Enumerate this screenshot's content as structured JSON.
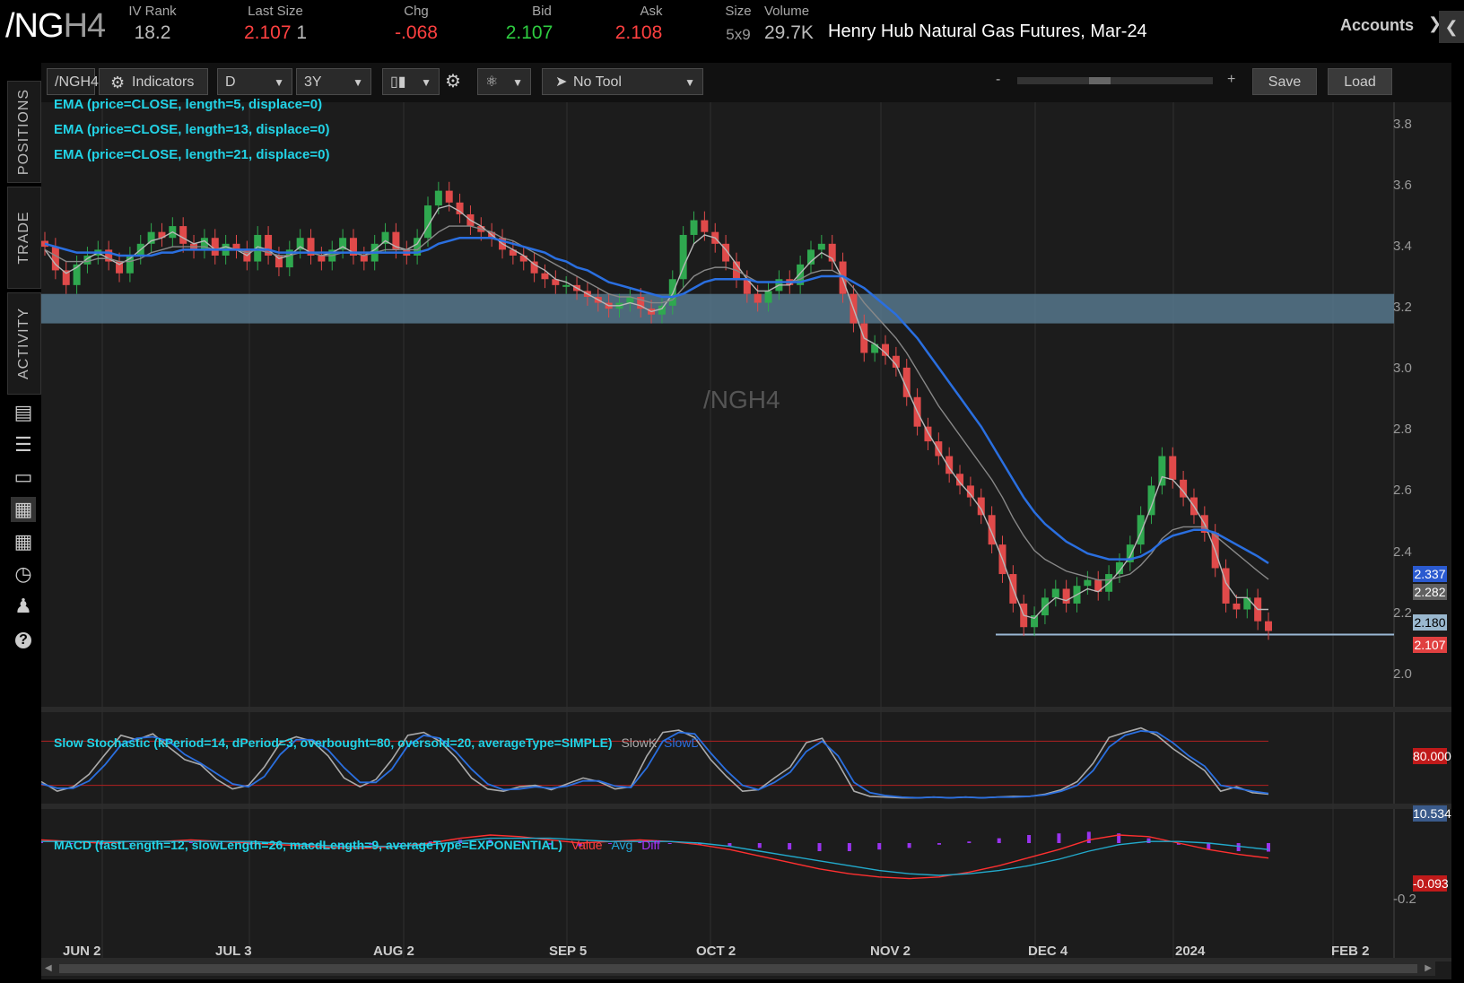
{
  "header": {
    "symbol_main": "/NG",
    "symbol_dim": "H4",
    "iv_rank_label": "IV Rank",
    "iv_rank_value": "18.2",
    "last_size_label": "Last Size",
    "last_value": "2.107",
    "last_size_value": "1",
    "chg_label": "Chg",
    "chg_value": "-.068",
    "bid_label": "Bid",
    "bid_value": "2.107",
    "ask_label": "Ask",
    "ask_value": "2.108",
    "size_label": "Size",
    "size_value": "5x9",
    "volume_label": "Volume",
    "volume_value": "29.7K",
    "description": "Henry Hub Natural Gas Futures, Mar-24",
    "accounts_label": "Accounts"
  },
  "left_nav": {
    "tabs": [
      "POSITIONS",
      "TRADE",
      "ACTIVITY"
    ],
    "icons": [
      "chart-panel-icon",
      "list-icon",
      "tv-icon",
      "chart-grid-icon",
      "grid-icon",
      "gauge-icon",
      "people-icon",
      "help-icon"
    ]
  },
  "toolbar": {
    "symbol_input": "/NGH4",
    "indicators_label": "Indicators",
    "aggregation": "D",
    "time_frame": "3Y",
    "tool": "No Tool",
    "save_label": "Save",
    "load_label": "Load",
    "zoom_minus": "-",
    "zoom_plus": "+"
  },
  "studies": {
    "ema1": "EMA (price=CLOSE, length=5, displace=0)",
    "ema2": "EMA (price=CLOSE, length=13, displace=0)",
    "ema3": "EMA (price=CLOSE, length=21, displace=0)",
    "stoch_title": "Slow Stochastic (kPeriod=14, dPeriod=3, overbought=80, oversold=20, averageType=SIMPLE)",
    "stoch_k": "SlowK",
    "stoch_d": "SlowD",
    "macd_title": "MACD (fastLength=12, slowLength=26, macdLength=9, averageType=EXPONENTIAL)",
    "macd_value": "Value",
    "macd_avg": "Avg",
    "macd_diff": "Diff"
  },
  "watermark": "/NGH4",
  "chart_data": {
    "type": "line",
    "title": "/NGH4",
    "price_axis": [
      "3.8",
      "3.6",
      "3.4",
      "3.2",
      "3.0",
      "2.8",
      "2.6",
      "2.4",
      "2.2",
      "2.0"
    ],
    "ylim": [
      1.85,
      3.9
    ],
    "date_axis": [
      "JUN 2",
      "JUL 3",
      "AUG 2",
      "SEP 5",
      "OCT 2",
      "NOV 2",
      "DEC 4",
      "2024",
      "FEB 2"
    ],
    "price_labels": {
      "ema21": "2.337",
      "ema13": "2.282",
      "ema5": "2.180",
      "last": "2.107"
    },
    "stoch_labels": {
      "overbought": "80.000",
      "current": "10.534"
    },
    "macd_labels": {
      "tick": "-0.2",
      "value": "-0.093"
    },
    "support_zone": [
      3.15,
      3.25
    ],
    "support_line": 2.095,
    "series": [
      {
        "name": "/NGH4",
        "color": "#e04a4a",
        "values": [
          3.41,
          3.33,
          3.28,
          3.35,
          3.38,
          3.4,
          3.36,
          3.32,
          3.38,
          3.42,
          3.46,
          3.44,
          3.48,
          3.42,
          3.4,
          3.44,
          3.38,
          3.42,
          3.4,
          3.36,
          3.45,
          3.38,
          3.34,
          3.4,
          3.44,
          3.38,
          3.36,
          3.4,
          3.44,
          3.38,
          3.36,
          3.42,
          3.46,
          3.4,
          3.38,
          3.44,
          3.55,
          3.6,
          3.56,
          3.52,
          3.48,
          3.46,
          3.44,
          3.4,
          3.38,
          3.36,
          3.32,
          3.3,
          3.28,
          3.28,
          3.26,
          3.24,
          3.22,
          3.2,
          3.22,
          3.24,
          3.2,
          3.18,
          3.21,
          3.3,
          3.45,
          3.5,
          3.46,
          3.42,
          3.36,
          3.3,
          3.25,
          3.22,
          3.26,
          3.3,
          3.28,
          3.35,
          3.4,
          3.42,
          3.36,
          3.25,
          3.15,
          3.05,
          3.08,
          3.04,
          3.0,
          2.9,
          2.8,
          2.75,
          2.7,
          2.64,
          2.6,
          2.56,
          2.5,
          2.4,
          2.3,
          2.2,
          2.12,
          2.16,
          2.22,
          2.25,
          2.2,
          2.26,
          2.28,
          2.24,
          2.3,
          2.34,
          2.4,
          2.5,
          2.6,
          2.7,
          2.62,
          2.56,
          2.5,
          2.44,
          2.32,
          2.2,
          2.18,
          2.22,
          2.14,
          2.107
        ]
      },
      {
        "name": "EMA5",
        "color": "#b8b8b8",
        "values": [
          3.4,
          3.35,
          3.32,
          3.34,
          3.37,
          3.39,
          3.37,
          3.35,
          3.37,
          3.4,
          3.43,
          3.44,
          3.46,
          3.44,
          3.42,
          3.43,
          3.4,
          3.41,
          3.4,
          3.38,
          3.41,
          3.4,
          3.37,
          3.38,
          3.41,
          3.39,
          3.38,
          3.39,
          3.41,
          3.39,
          3.38,
          3.4,
          3.43,
          3.41,
          3.4,
          3.42,
          3.48,
          3.54,
          3.55,
          3.53,
          3.5,
          3.48,
          3.45,
          3.42,
          3.4,
          3.38,
          3.35,
          3.33,
          3.3,
          3.29,
          3.27,
          3.25,
          3.23,
          3.21,
          3.21,
          3.22,
          3.21,
          3.19,
          3.2,
          3.25,
          3.34,
          3.42,
          3.45,
          3.44,
          3.4,
          3.35,
          3.3,
          3.26,
          3.26,
          3.28,
          3.28,
          3.32,
          3.36,
          3.39,
          3.37,
          3.3,
          3.2,
          3.1,
          3.08,
          3.05,
          3.01,
          2.93,
          2.85,
          2.78,
          2.72,
          2.66,
          2.61,
          2.57,
          2.52,
          2.44,
          2.35,
          2.25,
          2.16,
          2.15,
          2.19,
          2.22,
          2.21,
          2.23,
          2.25,
          2.24,
          2.27,
          2.31,
          2.36,
          2.44,
          2.53,
          2.63,
          2.62,
          2.58,
          2.53,
          2.47,
          2.38,
          2.27,
          2.22,
          2.22,
          2.18,
          2.18
        ]
      },
      {
        "name": "EMA13",
        "color": "#888888",
        "values": [
          3.4,
          3.38,
          3.36,
          3.36,
          3.36,
          3.37,
          3.37,
          3.36,
          3.36,
          3.37,
          3.39,
          3.4,
          3.41,
          3.41,
          3.41,
          3.41,
          3.4,
          3.4,
          3.4,
          3.39,
          3.4,
          3.39,
          3.38,
          3.38,
          3.39,
          3.39,
          3.38,
          3.38,
          3.39,
          3.39,
          3.38,
          3.39,
          3.4,
          3.4,
          3.4,
          3.4,
          3.43,
          3.46,
          3.48,
          3.48,
          3.48,
          3.47,
          3.46,
          3.44,
          3.43,
          3.41,
          3.39,
          3.37,
          3.35,
          3.33,
          3.31,
          3.29,
          3.27,
          3.25,
          3.24,
          3.24,
          3.23,
          3.22,
          3.22,
          3.23,
          3.27,
          3.31,
          3.33,
          3.34,
          3.34,
          3.33,
          3.31,
          3.29,
          3.29,
          3.29,
          3.29,
          3.3,
          3.32,
          3.33,
          3.33,
          3.31,
          3.27,
          3.22,
          3.18,
          3.14,
          3.1,
          3.05,
          2.99,
          2.93,
          2.87,
          2.82,
          2.77,
          2.72,
          2.67,
          2.62,
          2.56,
          2.49,
          2.43,
          2.38,
          2.35,
          2.33,
          2.31,
          2.3,
          2.29,
          2.28,
          2.28,
          2.29,
          2.3,
          2.33,
          2.37,
          2.42,
          2.45,
          2.46,
          2.46,
          2.46,
          2.43,
          2.4,
          2.37,
          2.34,
          2.31,
          2.282
        ]
      },
      {
        "name": "EMA21",
        "color": "#2a6fe0",
        "values": [
          3.42,
          3.41,
          3.4,
          3.39,
          3.39,
          3.39,
          3.39,
          3.38,
          3.38,
          3.38,
          3.38,
          3.39,
          3.39,
          3.4,
          3.4,
          3.4,
          3.4,
          3.4,
          3.4,
          3.4,
          3.4,
          3.4,
          3.39,
          3.39,
          3.39,
          3.39,
          3.39,
          3.39,
          3.39,
          3.39,
          3.39,
          3.39,
          3.39,
          3.39,
          3.39,
          3.39,
          3.4,
          3.42,
          3.43,
          3.44,
          3.44,
          3.44,
          3.44,
          3.43,
          3.42,
          3.41,
          3.4,
          3.39,
          3.37,
          3.36,
          3.34,
          3.33,
          3.31,
          3.29,
          3.28,
          3.27,
          3.26,
          3.25,
          3.24,
          3.24,
          3.25,
          3.27,
          3.29,
          3.3,
          3.3,
          3.3,
          3.3,
          3.29,
          3.29,
          3.29,
          3.29,
          3.29,
          3.3,
          3.31,
          3.31,
          3.31,
          3.29,
          3.27,
          3.24,
          3.21,
          3.18,
          3.14,
          3.1,
          3.05,
          3.0,
          2.95,
          2.9,
          2.85,
          2.8,
          2.74,
          2.68,
          2.62,
          2.56,
          2.51,
          2.47,
          2.44,
          2.41,
          2.39,
          2.37,
          2.36,
          2.35,
          2.35,
          2.35,
          2.36,
          2.38,
          2.41,
          2.43,
          2.44,
          2.45,
          2.45,
          2.44,
          2.42,
          2.4,
          2.38,
          2.36,
          2.337
        ]
      }
    ]
  },
  "stoch_data": {
    "slowk": [
      25,
      12,
      18,
      35,
      62,
      88,
      82,
      90,
      72,
      55,
      48,
      28,
      15,
      20,
      45,
      78,
      86,
      80,
      60,
      30,
      18,
      28,
      55,
      88,
      92,
      80,
      58,
      30,
      15,
      12,
      18,
      20,
      14,
      22,
      30,
      25,
      15,
      18,
      60,
      92,
      95,
      85,
      55,
      32,
      12,
      14,
      30,
      45,
      78,
      84,
      50,
      12,
      5,
      4,
      3,
      3,
      4,
      3,
      4,
      3,
      4,
      5,
      5,
      8,
      14,
      25,
      50,
      85,
      92,
      98,
      88,
      70,
      55,
      40,
      12,
      18,
      10,
      8
    ],
    "slowd": [
      22,
      16,
      16,
      26,
      48,
      75,
      84,
      86,
      80,
      62,
      50,
      36,
      22,
      18,
      32,
      62,
      82,
      82,
      68,
      44,
      24,
      24,
      42,
      74,
      88,
      84,
      66,
      42,
      22,
      14,
      15,
      18,
      16,
      19,
      26,
      26,
      19,
      17,
      44,
      80,
      92,
      90,
      64,
      40,
      20,
      14,
      24,
      38,
      66,
      80,
      60,
      24,
      10,
      6,
      4,
      3,
      4,
      3,
      4,
      3,
      4,
      4,
      5,
      7,
      12,
      20,
      40,
      72,
      88,
      94,
      92,
      78,
      60,
      46,
      20,
      16,
      12,
      9
    ],
    "overbought": 80,
    "oversold": 20,
    "current": 10.534
  },
  "macd_data": {
    "value": [
      0.02,
      0.01,
      0.0,
      0.01,
      0.01,
      0.02,
      0.01,
      0.0,
      -0.01,
      -0.02,
      -0.03,
      -0.03,
      -0.02,
      0.0,
      0.03,
      0.05,
      0.04,
      0.02,
      0.0,
      0.01,
      0.02,
      0.01,
      -0.01,
      -0.04,
      -0.08,
      -0.12,
      -0.16,
      -0.19,
      -0.21,
      -0.22,
      -0.21,
      -0.18,
      -0.14,
      -0.09,
      -0.04,
      0.02,
      0.05,
      0.04,
      0.0,
      -0.04,
      -0.07,
      -0.093
    ],
    "avg": [
      0.01,
      0.01,
      0.01,
      0.01,
      0.01,
      0.01,
      0.01,
      0.01,
      0.0,
      -0.01,
      -0.02,
      -0.02,
      -0.02,
      -0.01,
      0.01,
      0.03,
      0.03,
      0.03,
      0.02,
      0.01,
      0.01,
      0.01,
      0.0,
      -0.02,
      -0.05,
      -0.08,
      -0.11,
      -0.14,
      -0.17,
      -0.19,
      -0.2,
      -0.19,
      -0.17,
      -0.14,
      -0.1,
      -0.05,
      -0.01,
      0.01,
      0.01,
      0.0,
      -0.02,
      -0.04
    ],
    "diff": [
      0.01,
      0.0,
      -0.01,
      0.0,
      0.0,
      0.01,
      0.0,
      -0.01,
      -0.01,
      -0.01,
      -0.01,
      -0.01,
      0.0,
      0.01,
      0.02,
      0.02,
      0.01,
      -0.01,
      -0.02,
      0.0,
      0.01,
      0.0,
      -0.01,
      -0.02,
      -0.03,
      -0.04,
      -0.05,
      -0.05,
      -0.04,
      -0.03,
      -0.01,
      0.01,
      0.03,
      0.05,
      0.06,
      0.07,
      0.06,
      0.03,
      -0.01,
      -0.04,
      -0.05,
      -0.053
    ]
  },
  "colors": {
    "up_candle": "#2fa84f",
    "down_candle": "#e04a4a",
    "positive": "#2ecc40",
    "negative": "#ff4040",
    "cyan_text": "#22d3e6"
  }
}
